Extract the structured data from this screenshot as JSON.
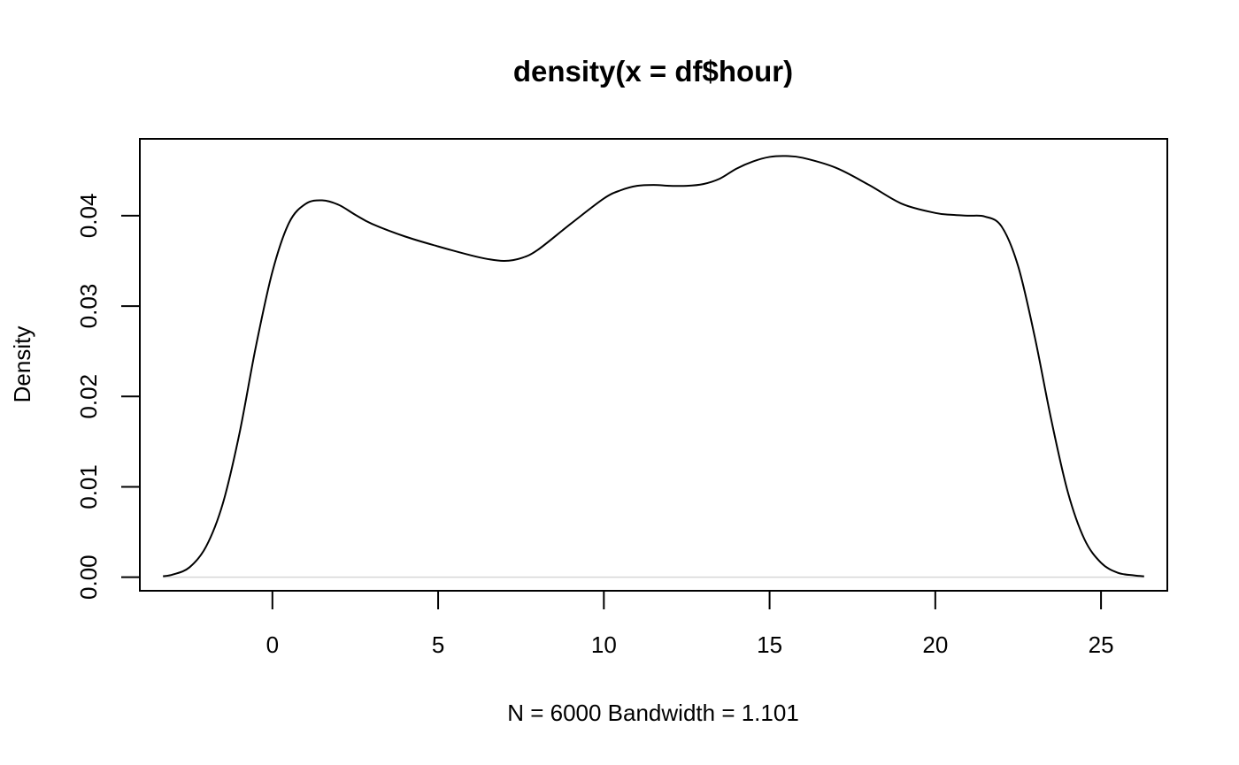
{
  "chart_data": {
    "type": "line",
    "title": "density(x = df$hour)",
    "xlabel": "N = 6000   Bandwidth = 1.101",
    "ylabel": "Density",
    "xlim": [
      -4,
      27
    ],
    "ylim": [
      -0.0015,
      0.0485
    ],
    "x_ticks": [
      0,
      5,
      10,
      15,
      20,
      25
    ],
    "y_ticks": [
      0.0,
      0.01,
      0.02,
      0.03,
      0.04
    ],
    "x_tick_labels": [
      "0",
      "5",
      "10",
      "15",
      "20",
      "25"
    ],
    "y_tick_labels": [
      "0.00",
      "0.01",
      "0.02",
      "0.03",
      "0.04"
    ],
    "grid": false,
    "series": [
      {
        "x": [
          -3.3,
          -3.0,
          -2.5,
          -2.0,
          -1.5,
          -1.0,
          -0.5,
          0.0,
          0.5,
          1.0,
          1.5,
          2.0,
          2.5,
          3.0,
          4.0,
          5.0,
          6.0,
          6.5,
          7.0,
          7.5,
          8.0,
          9.0,
          10.0,
          10.5,
          11.0,
          11.5,
          12.0,
          12.5,
          13.0,
          13.5,
          14.0,
          14.5,
          15.0,
          15.5,
          16.0,
          17.0,
          18.0,
          19.0,
          20.0,
          20.5,
          21.0,
          21.5,
          22.0,
          22.5,
          23.0,
          23.5,
          24.0,
          24.5,
          25.0,
          25.5,
          26.0,
          26.3
        ],
        "y": [
          0.0001,
          0.0003,
          0.0011,
          0.0034,
          0.0081,
          0.0158,
          0.0255,
          0.0338,
          0.0392,
          0.0413,
          0.0417,
          0.0412,
          0.0401,
          0.0391,
          0.0377,
          0.0366,
          0.0356,
          0.0352,
          0.035,
          0.0353,
          0.0362,
          0.0391,
          0.0419,
          0.0428,
          0.0433,
          0.0434,
          0.0433,
          0.0433,
          0.0435,
          0.0441,
          0.0452,
          0.046,
          0.0465,
          0.0466,
          0.0464,
          0.0453,
          0.0434,
          0.0413,
          0.0403,
          0.0401,
          0.04,
          0.0399,
          0.0388,
          0.0344,
          0.0266,
          0.0174,
          0.0094,
          0.0042,
          0.0016,
          0.0005,
          0.0002,
          0.0001
        ]
      }
    ]
  }
}
